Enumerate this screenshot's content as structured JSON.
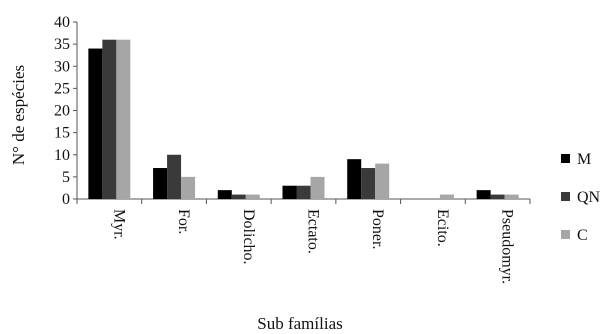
{
  "chart_data": {
    "type": "bar",
    "title": "",
    "xlabel": "Sub famílias",
    "ylabel": "N° de espécies",
    "categories": [
      "Myr.",
      "For.",
      "Dolicho.",
      "Ectato.",
      "Poner.",
      "Ecito.",
      "Pseudomyr."
    ],
    "series": [
      {
        "name": "M",
        "color": "#000000",
        "values": [
          34,
          7,
          2,
          3,
          9,
          0,
          2
        ]
      },
      {
        "name": "QN",
        "color": "#3a3a3a",
        "values": [
          36,
          10,
          1,
          3,
          7,
          0,
          1
        ]
      },
      {
        "name": "C",
        "color": "#a6a6a6",
        "values": [
          36,
          5,
          1,
          5,
          8,
          1,
          1
        ]
      }
    ],
    "ylim": [
      0,
      40
    ],
    "yticks": [
      0,
      5,
      10,
      15,
      20,
      25,
      30,
      35,
      40
    ],
    "grid": false,
    "legend_position": "right"
  }
}
